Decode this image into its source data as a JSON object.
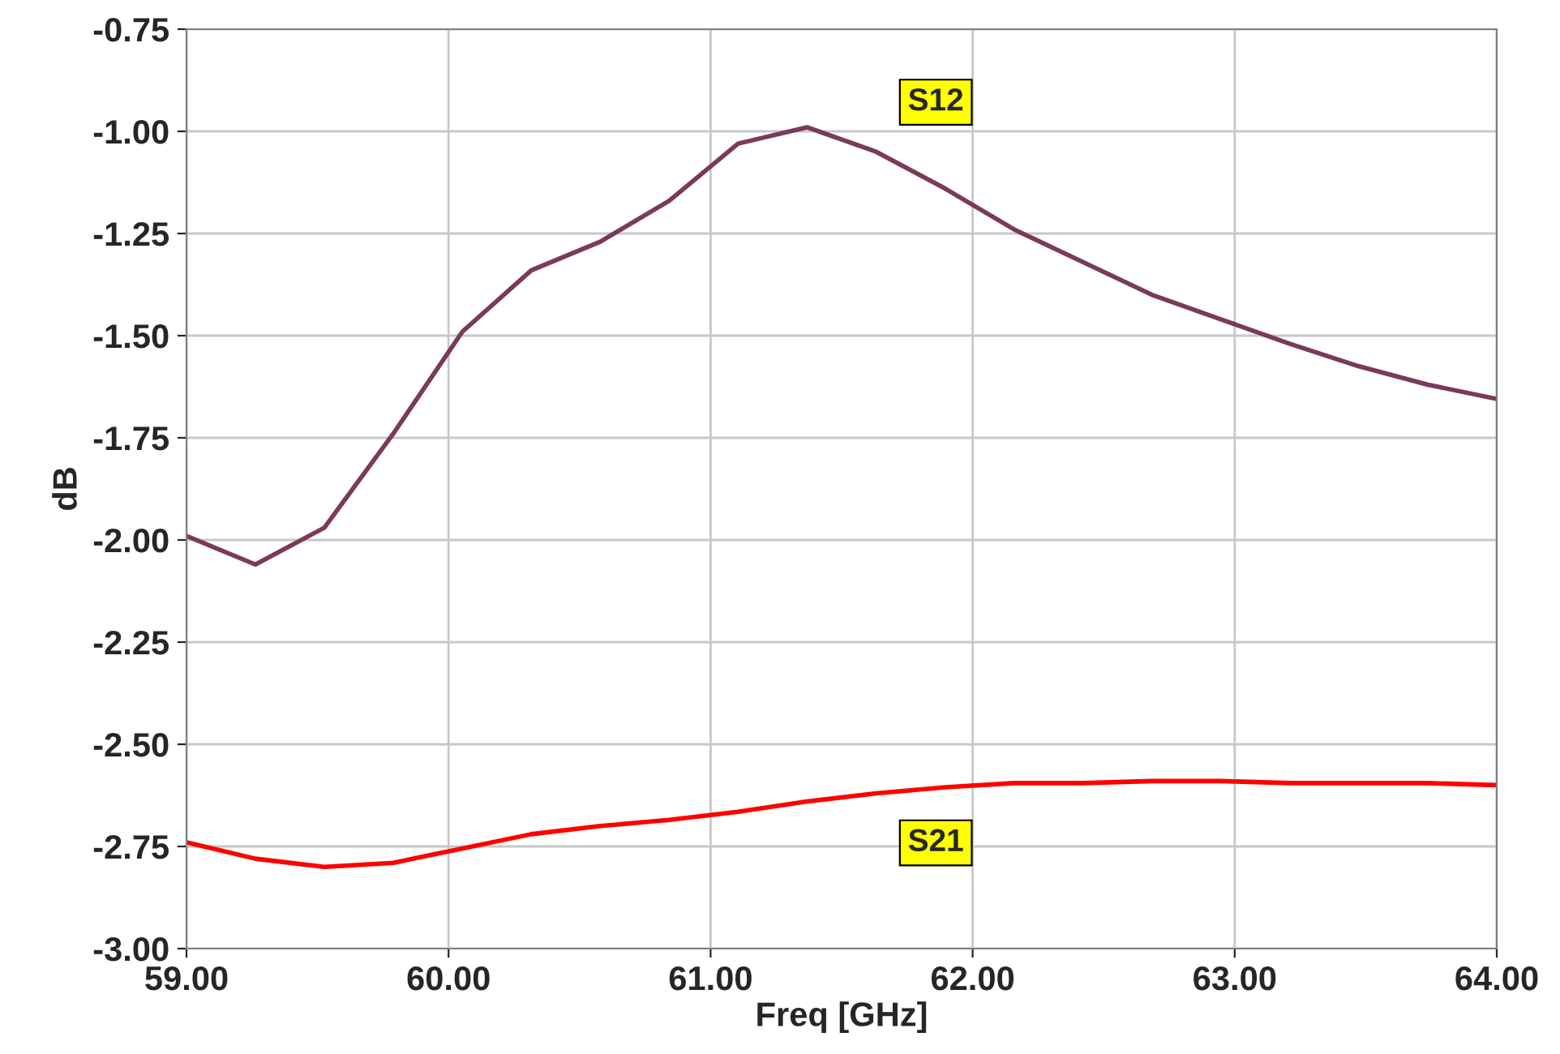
{
  "chart_data": {
    "type": "line",
    "xlabel": "Freq [GHz]",
    "ylabel": "dB",
    "x": [
      59.0,
      59.263,
      59.526,
      59.789,
      60.053,
      60.316,
      60.579,
      60.842,
      61.105,
      61.368,
      61.632,
      61.895,
      62.158,
      62.421,
      62.684,
      62.947,
      63.211,
      63.474,
      63.737,
      64.0
    ],
    "series": [
      {
        "name": "S12",
        "color": "#7b3a5a",
        "values": [
          -1.99,
          -2.06,
          -1.97,
          -1.74,
          -1.49,
          -1.34,
          -1.27,
          -1.17,
          -1.03,
          -0.99,
          -1.05,
          -1.14,
          -1.24,
          -1.32,
          -1.4,
          -1.46,
          -1.52,
          -1.575,
          -1.62,
          -1.655
        ]
      },
      {
        "name": "S21",
        "color": "#ff0000",
        "values": [
          -2.74,
          -2.78,
          -2.8,
          -2.79,
          -2.755,
          -2.72,
          -2.7,
          -2.685,
          -2.665,
          -2.64,
          -2.62,
          -2.605,
          -2.595,
          -2.595,
          -2.59,
          -2.59,
          -2.595,
          -2.595,
          -2.595,
          -2.6
        ]
      }
    ],
    "xlim": [
      59.0,
      64.0
    ],
    "ylim": [
      -3.0,
      -0.75
    ],
    "xticks": [
      {
        "value": 59,
        "label": "59.00"
      },
      {
        "value": 60,
        "label": "60.00"
      },
      {
        "value": 61,
        "label": "61.00"
      },
      {
        "value": 62,
        "label": "62.00"
      },
      {
        "value": 63,
        "label": "63.00"
      },
      {
        "value": 64,
        "label": "64.00"
      }
    ],
    "yticks": [
      {
        "value": -3.0,
        "label": "-3.00"
      },
      {
        "value": -2.75,
        "label": "-2.75"
      },
      {
        "value": -2.5,
        "label": "-2.50"
      },
      {
        "value": -2.25,
        "label": "-2.25"
      },
      {
        "value": -2.0,
        "label": "-2.00"
      },
      {
        "value": -1.75,
        "label": "-1.75"
      },
      {
        "value": -1.5,
        "label": "-1.50"
      },
      {
        "value": -1.25,
        "label": "-1.25"
      },
      {
        "value": -1.0,
        "label": "-1.00"
      },
      {
        "value": -0.75,
        "label": "-0.75"
      }
    ],
    "grid": true,
    "legend": false
  }
}
